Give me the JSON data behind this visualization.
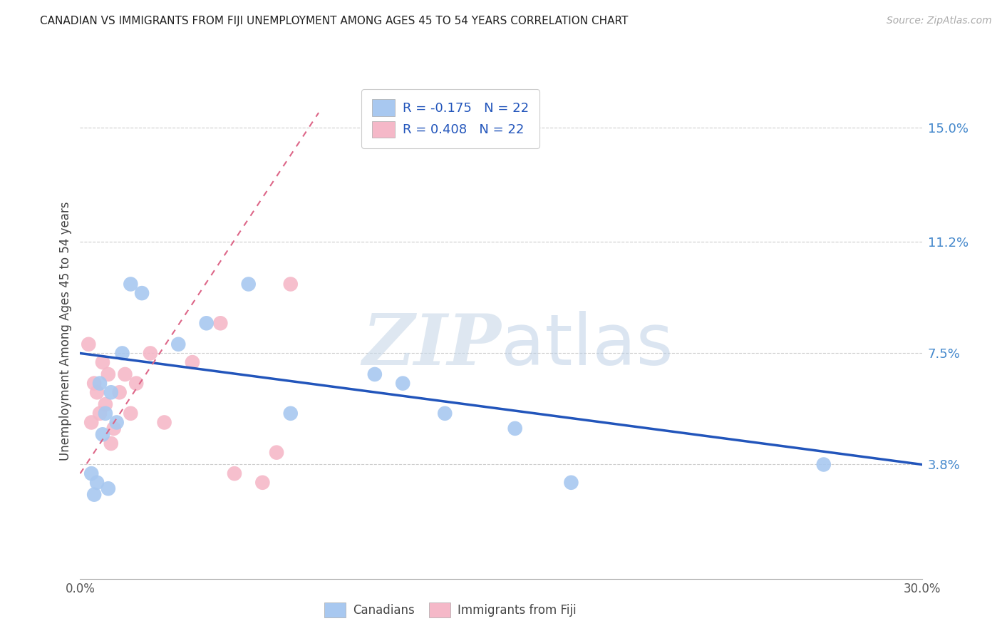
{
  "title": "CANADIAN VS IMMIGRANTS FROM FIJI UNEMPLOYMENT AMONG AGES 45 TO 54 YEARS CORRELATION CHART",
  "source": "Source: ZipAtlas.com",
  "ylabel": "Unemployment Among Ages 45 to 54 years",
  "ytick_labels": [
    "3.8%",
    "7.5%",
    "11.2%",
    "15.0%"
  ],
  "ytick_values": [
    3.8,
    7.5,
    11.2,
    15.0
  ],
  "xlim": [
    0.0,
    30.0
  ],
  "ylim": [
    0.0,
    16.5
  ],
  "watermark_zip": "ZIP",
  "watermark_atlas": "atlas",
  "canadian_color": "#a8c8f0",
  "fiji_color": "#f5b8c8",
  "canadian_line_color": "#2255bb",
  "fiji_line_color": "#dd6688",
  "background_color": "#ffffff",
  "grid_color": "#cccccc",
  "canadians_x": [
    0.4,
    0.5,
    0.6,
    0.7,
    0.8,
    0.9,
    1.0,
    1.1,
    1.3,
    1.5,
    1.8,
    2.2,
    3.5,
    4.5,
    6.0,
    7.5,
    10.5,
    11.5,
    13.0,
    15.5,
    17.5,
    26.5
  ],
  "canadians_y": [
    3.5,
    2.8,
    3.2,
    6.5,
    4.8,
    5.5,
    3.0,
    6.2,
    5.2,
    7.5,
    9.8,
    9.5,
    7.8,
    8.5,
    9.8,
    5.5,
    6.8,
    6.5,
    5.5,
    5.0,
    3.2,
    3.8
  ],
  "fiji_x": [
    0.3,
    0.4,
    0.5,
    0.6,
    0.7,
    0.8,
    0.9,
    1.0,
    1.1,
    1.2,
    1.4,
    1.6,
    1.8,
    2.0,
    2.5,
    3.0,
    4.0,
    5.0,
    5.5,
    6.5,
    7.0,
    7.5
  ],
  "fiji_y": [
    7.8,
    5.2,
    6.5,
    6.2,
    5.5,
    7.2,
    5.8,
    6.8,
    4.5,
    5.0,
    6.2,
    6.8,
    5.5,
    6.5,
    7.5,
    5.2,
    7.2,
    8.5,
    3.5,
    3.2,
    4.2,
    9.8
  ],
  "canadian_line_x0": 0.0,
  "canadian_line_y0": 7.5,
  "canadian_line_x1": 30.0,
  "canadian_line_y1": 3.8,
  "fiji_line_x0": 0.0,
  "fiji_line_y0": 3.5,
  "fiji_line_x1": 8.5,
  "fiji_line_y1": 15.5
}
